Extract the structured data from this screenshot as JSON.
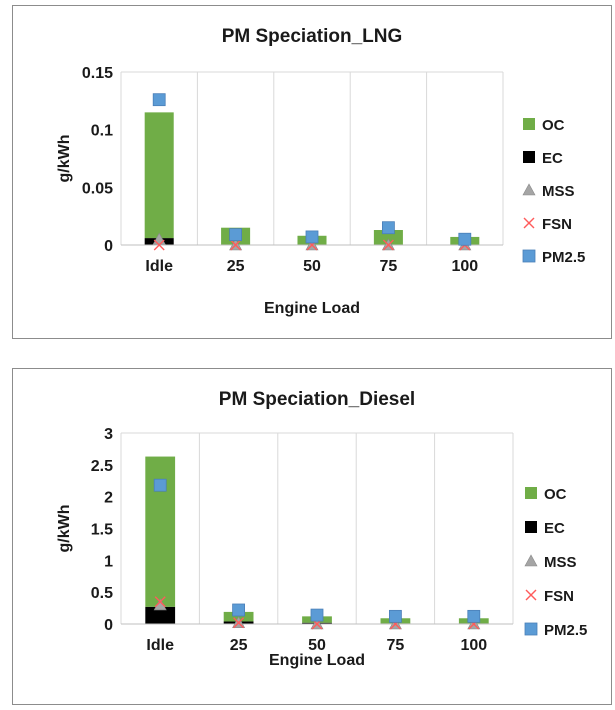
{
  "chart_data": [
    {
      "type": "bar",
      "title": "PM Speciation_LNG",
      "xlabel": "Engine Load",
      "ylabel": "g/kWh",
      "categories": [
        "Idle",
        "25",
        "50",
        "75",
        "100"
      ],
      "yticks": [
        "0",
        "0.05",
        "0.1",
        "0.15"
      ],
      "ylim": [
        0,
        0.15
      ],
      "grid": "vertical",
      "legend_position": "right",
      "series": [
        {
          "name": "OC",
          "kind": "stacked-bar",
          "color": "#70ad47",
          "values": [
            0.109,
            0.015,
            0.008,
            0.013,
            0.007
          ]
        },
        {
          "name": "EC",
          "kind": "stacked-bar",
          "color": "#000000",
          "values": [
            0.006,
            0.0,
            0.0,
            0.0,
            0.0
          ]
        },
        {
          "name": "MSS",
          "kind": "marker-triangle",
          "color": "#a5a5a5",
          "values": [
            0.005,
            0.0,
            0.0,
            0.0,
            0.0
          ]
        },
        {
          "name": "FSN",
          "kind": "marker-x",
          "color": "#ff5b5b",
          "values": [
            0.0,
            0.0,
            0.0,
            0.0,
            0.0
          ]
        },
        {
          "name": "PM2.5",
          "kind": "marker-square",
          "color": "#5b9bd5",
          "values": [
            0.126,
            0.009,
            0.007,
            0.015,
            0.005
          ]
        }
      ]
    },
    {
      "type": "bar",
      "title": "PM Speciation_Diesel",
      "xlabel": "Engine Load",
      "ylabel": "g/kWh",
      "categories": [
        "Idle",
        "25",
        "50",
        "75",
        "100"
      ],
      "yticks": [
        "0",
        "0.5",
        "1",
        "1.5",
        "2",
        "2.5",
        "3"
      ],
      "ylim": [
        0,
        3
      ],
      "grid": "vertical",
      "legend_position": "right",
      "series": [
        {
          "name": "OC",
          "kind": "stacked-bar",
          "color": "#70ad47",
          "values": [
            2.36,
            0.15,
            0.1,
            0.08,
            0.08
          ]
        },
        {
          "name": "EC",
          "kind": "stacked-bar",
          "color": "#000000",
          "values": [
            0.27,
            0.04,
            0.02,
            0.01,
            0.01
          ]
        },
        {
          "name": "MSS",
          "kind": "marker-triangle",
          "color": "#a5a5a5",
          "values": [
            0.3,
            0.02,
            0.0,
            0.0,
            0.0
          ]
        },
        {
          "name": "FSN",
          "kind": "marker-x",
          "color": "#ff5b5b",
          "values": [
            0.35,
            0.02,
            0.0,
            0.0,
            0.0
          ]
        },
        {
          "name": "PM2.5",
          "kind": "marker-square",
          "color": "#5b9bd5",
          "values": [
            2.18,
            0.22,
            0.14,
            0.12,
            0.12
          ]
        }
      ]
    }
  ]
}
